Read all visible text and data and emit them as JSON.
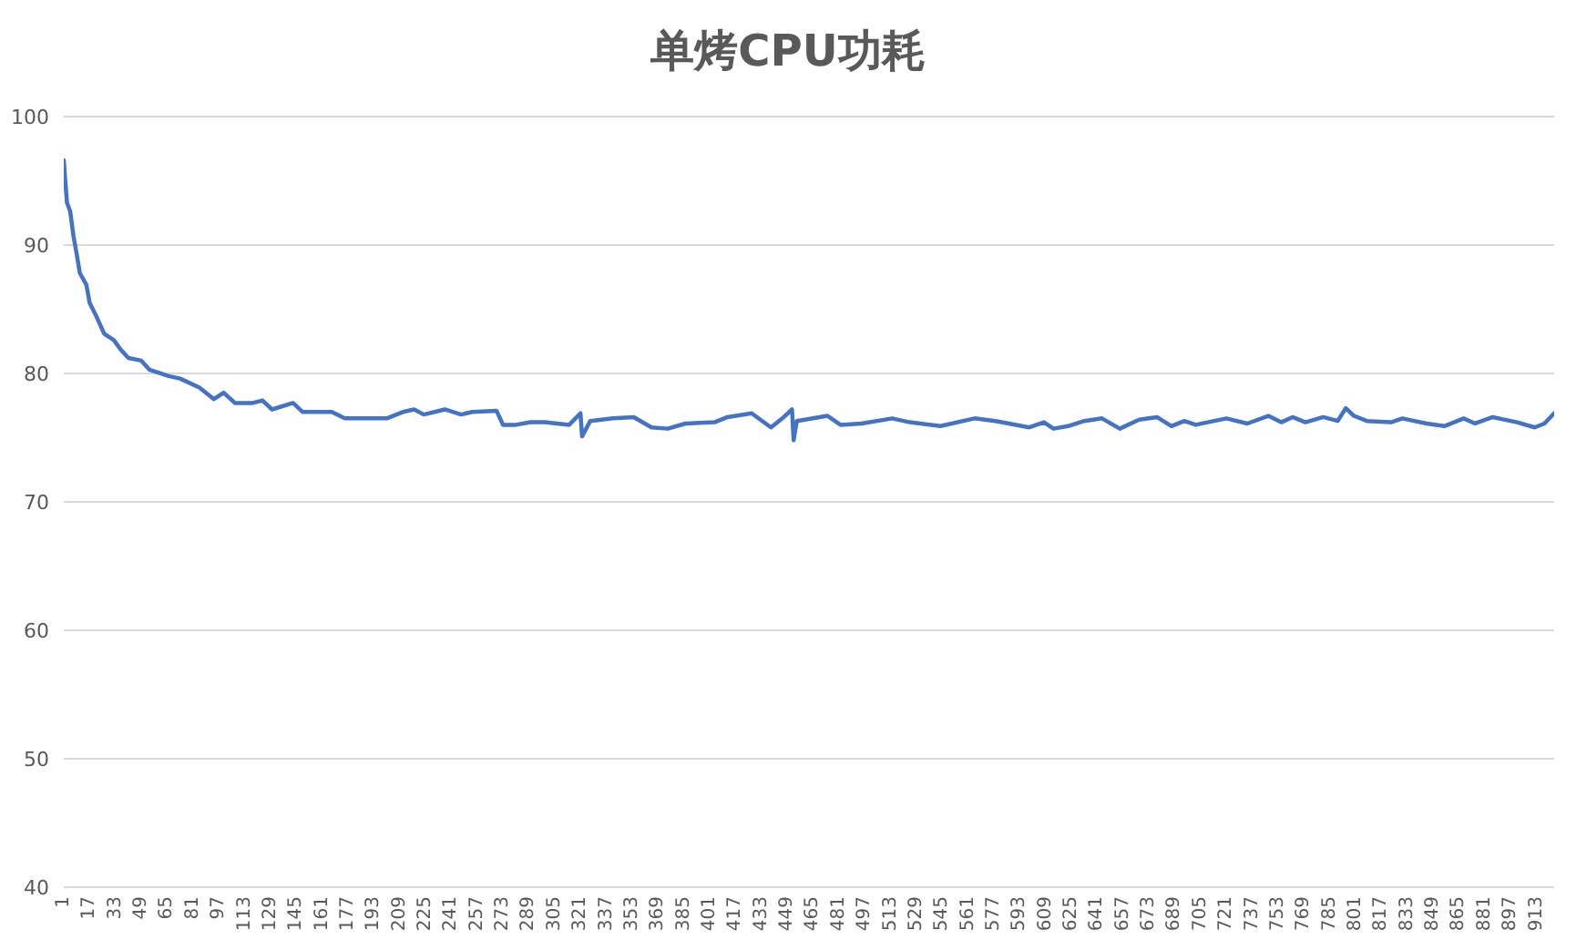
{
  "chart_data": {
    "type": "line",
    "title": "单烤CPU功耗",
    "color": "#4472c4",
    "marker": "none",
    "grid": "y",
    "x": [
      1,
      2,
      3,
      5,
      7,
      9,
      11,
      15,
      17,
      21,
      26,
      32,
      36,
      41,
      49,
      54,
      66,
      73,
      85,
      94,
      100,
      107,
      118,
      124,
      130,
      143,
      149,
      167,
      175,
      186,
      201,
      211,
      218,
      224,
      237,
      247,
      254,
      269,
      273,
      281,
      290,
      299,
      314,
      321,
      322,
      327,
      341,
      354,
      365,
      375,
      386,
      404,
      412,
      427,
      439,
      446,
      452,
      453,
      455,
      474,
      482,
      495,
      514,
      525,
      544,
      565,
      578,
      599,
      608,
      614,
      623,
      633,
      644,
      655,
      667,
      678,
      687,
      695,
      702,
      721,
      734,
      747,
      755,
      762,
      770,
      781,
      790,
      795,
      800,
      808,
      823,
      830,
      845,
      856,
      868,
      875,
      886,
      901,
      912,
      918,
      924
    ],
    "values": [
      96.6,
      94.9,
      93.3,
      92.6,
      90.7,
      89.3,
      87.8,
      86.9,
      85.5,
      84.5,
      83.1,
      82.6,
      81.9,
      81.2,
      81.0,
      80.3,
      79.8,
      79.6,
      78.9,
      78.0,
      78.5,
      77.7,
      77.7,
      77.9,
      77.2,
      77.7,
      77.0,
      77.0,
      76.5,
      76.5,
      76.5,
      77.0,
      77.2,
      76.8,
      77.2,
      76.8,
      77.0,
      77.1,
      76.0,
      76.0,
      76.2,
      76.2,
      76.0,
      76.9,
      75.1,
      76.3,
      76.5,
      76.6,
      75.8,
      75.7,
      76.1,
      76.2,
      76.6,
      76.9,
      75.8,
      76.5,
      77.2,
      74.8,
      76.3,
      76.7,
      76.0,
      76.1,
      76.5,
      76.2,
      75.9,
      76.5,
      76.3,
      75.8,
      76.2,
      75.7,
      75.9,
      76.3,
      76.5,
      75.7,
      76.4,
      76.6,
      75.9,
      76.3,
      76.0,
      76.5,
      76.1,
      76.7,
      76.2,
      76.6,
      76.2,
      76.6,
      76.3,
      77.3,
      76.7,
      76.3,
      76.2,
      76.5,
      76.1,
      75.9,
      76.5,
      76.1,
      76.6,
      76.2,
      75.8,
      76.1,
      76.9
    ],
    "xlim": [
      1,
      924
    ],
    "xticks": [
      1,
      17,
      33,
      49,
      65,
      81,
      97,
      113,
      129,
      145,
      161,
      177,
      193,
      209,
      225,
      241,
      257,
      273,
      289,
      305,
      321,
      337,
      353,
      369,
      385,
      401,
      417,
      433,
      449,
      465,
      481,
      497,
      513,
      529,
      545,
      561,
      577,
      593,
      609,
      625,
      641,
      657,
      673,
      689,
      705,
      721,
      737,
      753,
      769,
      785,
      801,
      817,
      833,
      849,
      865,
      881,
      897,
      913
    ],
    "ylim": [
      40,
      100
    ],
    "yticks": [
      40,
      50,
      60,
      70,
      80,
      90,
      100
    ]
  }
}
